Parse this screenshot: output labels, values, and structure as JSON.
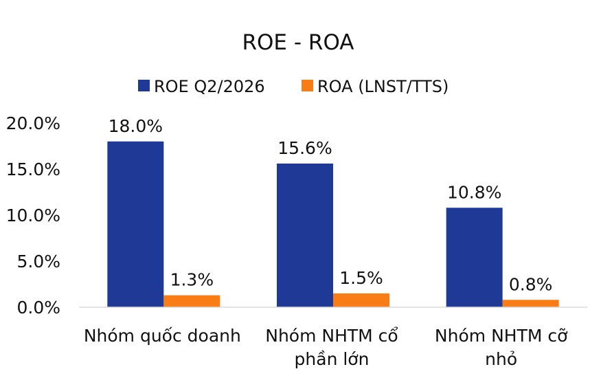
{
  "chart_data": {
    "type": "bar",
    "title": "ROE - ROA",
    "xlabel": "",
    "ylabel": "",
    "categories": [
      [
        "Nhóm quốc doanh"
      ],
      [
        "Nhóm NHTM cổ",
        "phần lớn"
      ],
      [
        "Nhóm NHTM cỡ",
        "nhỏ"
      ]
    ],
    "series": [
      {
        "name": "ROE Q2/2026",
        "color": "#1f3996",
        "values": [
          18.0,
          15.6,
          10.8
        ],
        "labels": [
          "18.0%",
          "15.6%",
          "10.8%"
        ]
      },
      {
        "name": "ROA (LNST/TTS)",
        "color": "#f97d16",
        "values": [
          1.3,
          1.5,
          0.8
        ],
        "labels": [
          "1.3%",
          "1.5%",
          "0.8%"
        ]
      }
    ],
    "ylim": [
      0,
      20
    ],
    "yticks": [
      0,
      5,
      10,
      15,
      20
    ],
    "ytick_labels": [
      "0.0%",
      "5.0%",
      "10.0%",
      "15.0%",
      "20.0%"
    ],
    "grid": false,
    "legend": "top-center",
    "baseline_color": "#d9d9d9"
  }
}
